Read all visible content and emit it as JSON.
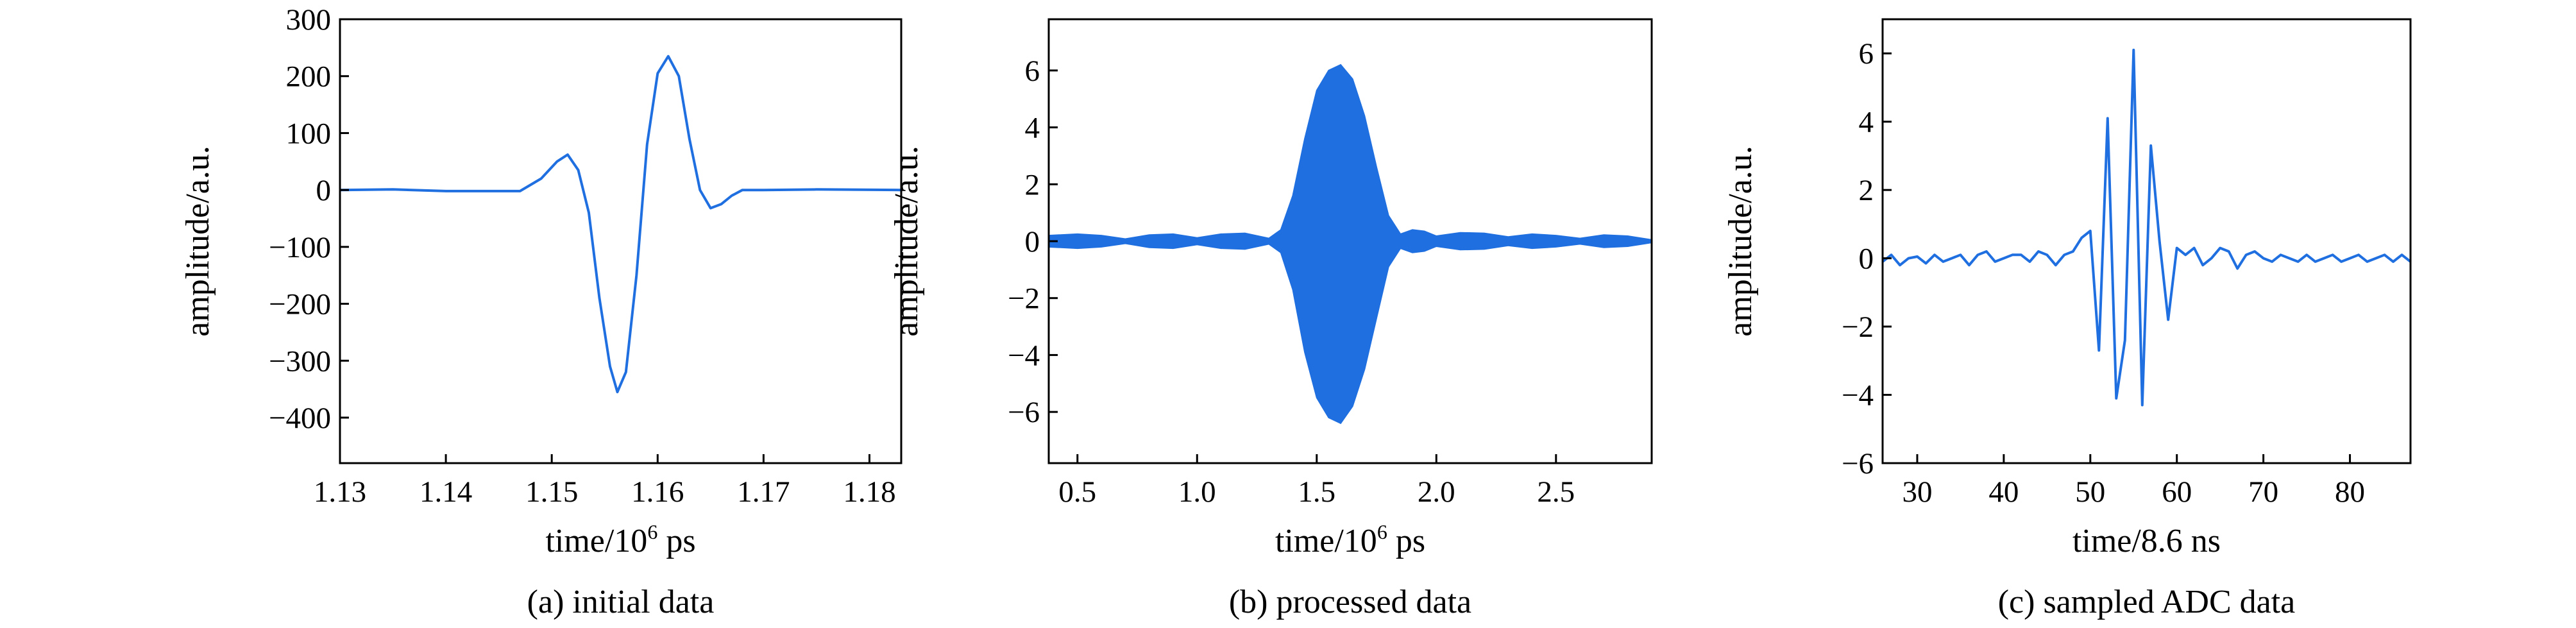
{
  "colors": {
    "series": "#1f6fe0",
    "axis": "#000000"
  },
  "chart_data": [
    {
      "type": "line",
      "caption": "(a) initial data",
      "xlabel": "time/10",
      "xlabel_sup": "6",
      "xlabel_tail": " ps",
      "ylabel": "amplitude/a.u.",
      "xlim": [
        1.13,
        1.183
      ],
      "ylim": [
        -480,
        300
      ],
      "xticks": [
        1.13,
        1.14,
        1.15,
        1.16,
        1.17,
        1.18
      ],
      "xtick_labels": [
        "1.13",
        "1.14",
        "1.15",
        "1.16",
        "1.17",
        "1.18"
      ],
      "yticks": [
        300,
        200,
        100,
        0,
        -100,
        -200,
        -300,
        -400
      ],
      "ytick_labels": [
        "300",
        "200",
        "100",
        "0",
        "−100",
        "−200",
        "−300",
        "−400"
      ],
      "series": [
        {
          "x": [
            1.13,
            1.135,
            1.14,
            1.145,
            1.147,
            1.149,
            1.1505,
            1.1515,
            1.1525,
            1.1535,
            1.1545,
            1.1555,
            1.1562,
            1.157,
            1.158,
            1.159,
            1.16,
            1.161,
            1.162,
            1.163,
            1.164,
            1.165,
            1.166,
            1.167,
            1.168,
            1.17,
            1.175,
            1.183
          ],
          "y": [
            0,
            1,
            -2,
            -2,
            -2,
            20,
            50,
            62,
            35,
            -40,
            -190,
            -310,
            -355,
            -320,
            -150,
            80,
            205,
            235,
            200,
            90,
            0,
            -32,
            -25,
            -10,
            0,
            0,
            1,
            0
          ]
        }
      ]
    },
    {
      "type": "area",
      "caption": "(b) processed data",
      "xlabel": "time/10",
      "xlabel_sup": "6",
      "xlabel_tail": " ps",
      "ylabel": "amplitude/a.u.",
      "xlim": [
        0.38,
        2.9
      ],
      "ylim": [
        -7.8,
        7.8
      ],
      "xticks": [
        0.5,
        1.0,
        1.5,
        2.0,
        2.5
      ],
      "xtick_labels": [
        "0.5",
        "1.0",
        "1.5",
        "2.0",
        "2.5"
      ],
      "yticks": [
        6,
        4,
        2,
        0,
        -2,
        -4,
        -6
      ],
      "ytick_labels": [
        "6",
        "4",
        "2",
        "0",
        "−2",
        "−4",
        "−6"
      ],
      "series": [
        {
          "x": [
            0.38,
            0.5,
            0.6,
            0.7,
            0.8,
            0.9,
            1.0,
            1.1,
            1.2,
            1.3,
            1.35,
            1.4,
            1.45,
            1.5,
            1.55,
            1.6,
            1.65,
            1.7,
            1.75,
            1.8,
            1.85,
            1.9,
            1.95,
            2.0,
            2.1,
            2.2,
            2.3,
            2.4,
            2.5,
            2.6,
            2.7,
            2.8,
            2.9
          ],
          "upper": [
            0.2,
            0.25,
            0.2,
            0.08,
            0.22,
            0.25,
            0.12,
            0.25,
            0.28,
            0.1,
            0.4,
            1.6,
            3.6,
            5.3,
            6.0,
            6.2,
            5.7,
            4.4,
            2.6,
            0.9,
            0.25,
            0.4,
            0.35,
            0.18,
            0.3,
            0.28,
            0.15,
            0.25,
            0.2,
            0.1,
            0.22,
            0.18,
            0.05
          ],
          "lower": [
            -0.2,
            -0.25,
            -0.2,
            -0.08,
            -0.22,
            -0.25,
            -0.12,
            -0.25,
            -0.28,
            -0.1,
            -0.4,
            -1.7,
            -3.9,
            -5.5,
            -6.2,
            -6.4,
            -5.8,
            -4.5,
            -2.7,
            -0.9,
            -0.25,
            -0.4,
            -0.35,
            -0.18,
            -0.3,
            -0.28,
            -0.15,
            -0.25,
            -0.2,
            -0.1,
            -0.22,
            -0.18,
            -0.05
          ]
        }
      ]
    },
    {
      "type": "line",
      "caption": "(c) sampled ADC data",
      "xlabel": "time/8.6 ns",
      "xlabel_sup": "",
      "xlabel_tail": "",
      "ylabel": "amplitude/a.u.",
      "xlim": [
        26,
        87
      ],
      "ylim": [
        -6,
        7
      ],
      "xticks": [
        30,
        40,
        50,
        60,
        70,
        80
      ],
      "xtick_labels": [
        "30",
        "40",
        "50",
        "60",
        "70",
        "80"
      ],
      "yticks": [
        6,
        4,
        2,
        0,
        -2,
        -4,
        -6
      ],
      "ytick_labels": [
        "6",
        "4",
        "2",
        "0",
        "−2",
        "−4",
        "−6"
      ],
      "series": [
        {
          "x": [
            26,
            27,
            28,
            29,
            30,
            31,
            32,
            33,
            34,
            35,
            36,
            37,
            38,
            39,
            40,
            41,
            42,
            43,
            44,
            45,
            46,
            47,
            48,
            49,
            50,
            51,
            52,
            53,
            54,
            55,
            56,
            57,
            58,
            59,
            60,
            61,
            62,
            63,
            64,
            65,
            66,
            67,
            68,
            69,
            70,
            71,
            72,
            73,
            74,
            75,
            76,
            77,
            78,
            79,
            80,
            81,
            82,
            83,
            84,
            85,
            86,
            87
          ],
          "y": [
            -0.1,
            0.1,
            -0.2,
            0.0,
            0.05,
            -0.15,
            0.1,
            -0.1,
            0.0,
            0.1,
            -0.2,
            0.1,
            0.2,
            -0.1,
            0.0,
            0.1,
            0.1,
            -0.1,
            0.2,
            0.1,
            -0.2,
            0.1,
            0.2,
            0.6,
            0.8,
            -2.7,
            4.1,
            -4.1,
            -2.4,
            6.1,
            -4.3,
            3.3,
            0.5,
            -1.8,
            0.3,
            0.1,
            0.3,
            -0.2,
            0.0,
            0.3,
            0.2,
            -0.3,
            0.1,
            0.2,
            0.0,
            -0.1,
            0.1,
            0.0,
            -0.1,
            0.1,
            -0.1,
            0.0,
            0.1,
            -0.1,
            0.0,
            0.1,
            -0.1,
            0.0,
            0.1,
            -0.1,
            0.1,
            -0.1
          ]
        }
      ]
    }
  ]
}
